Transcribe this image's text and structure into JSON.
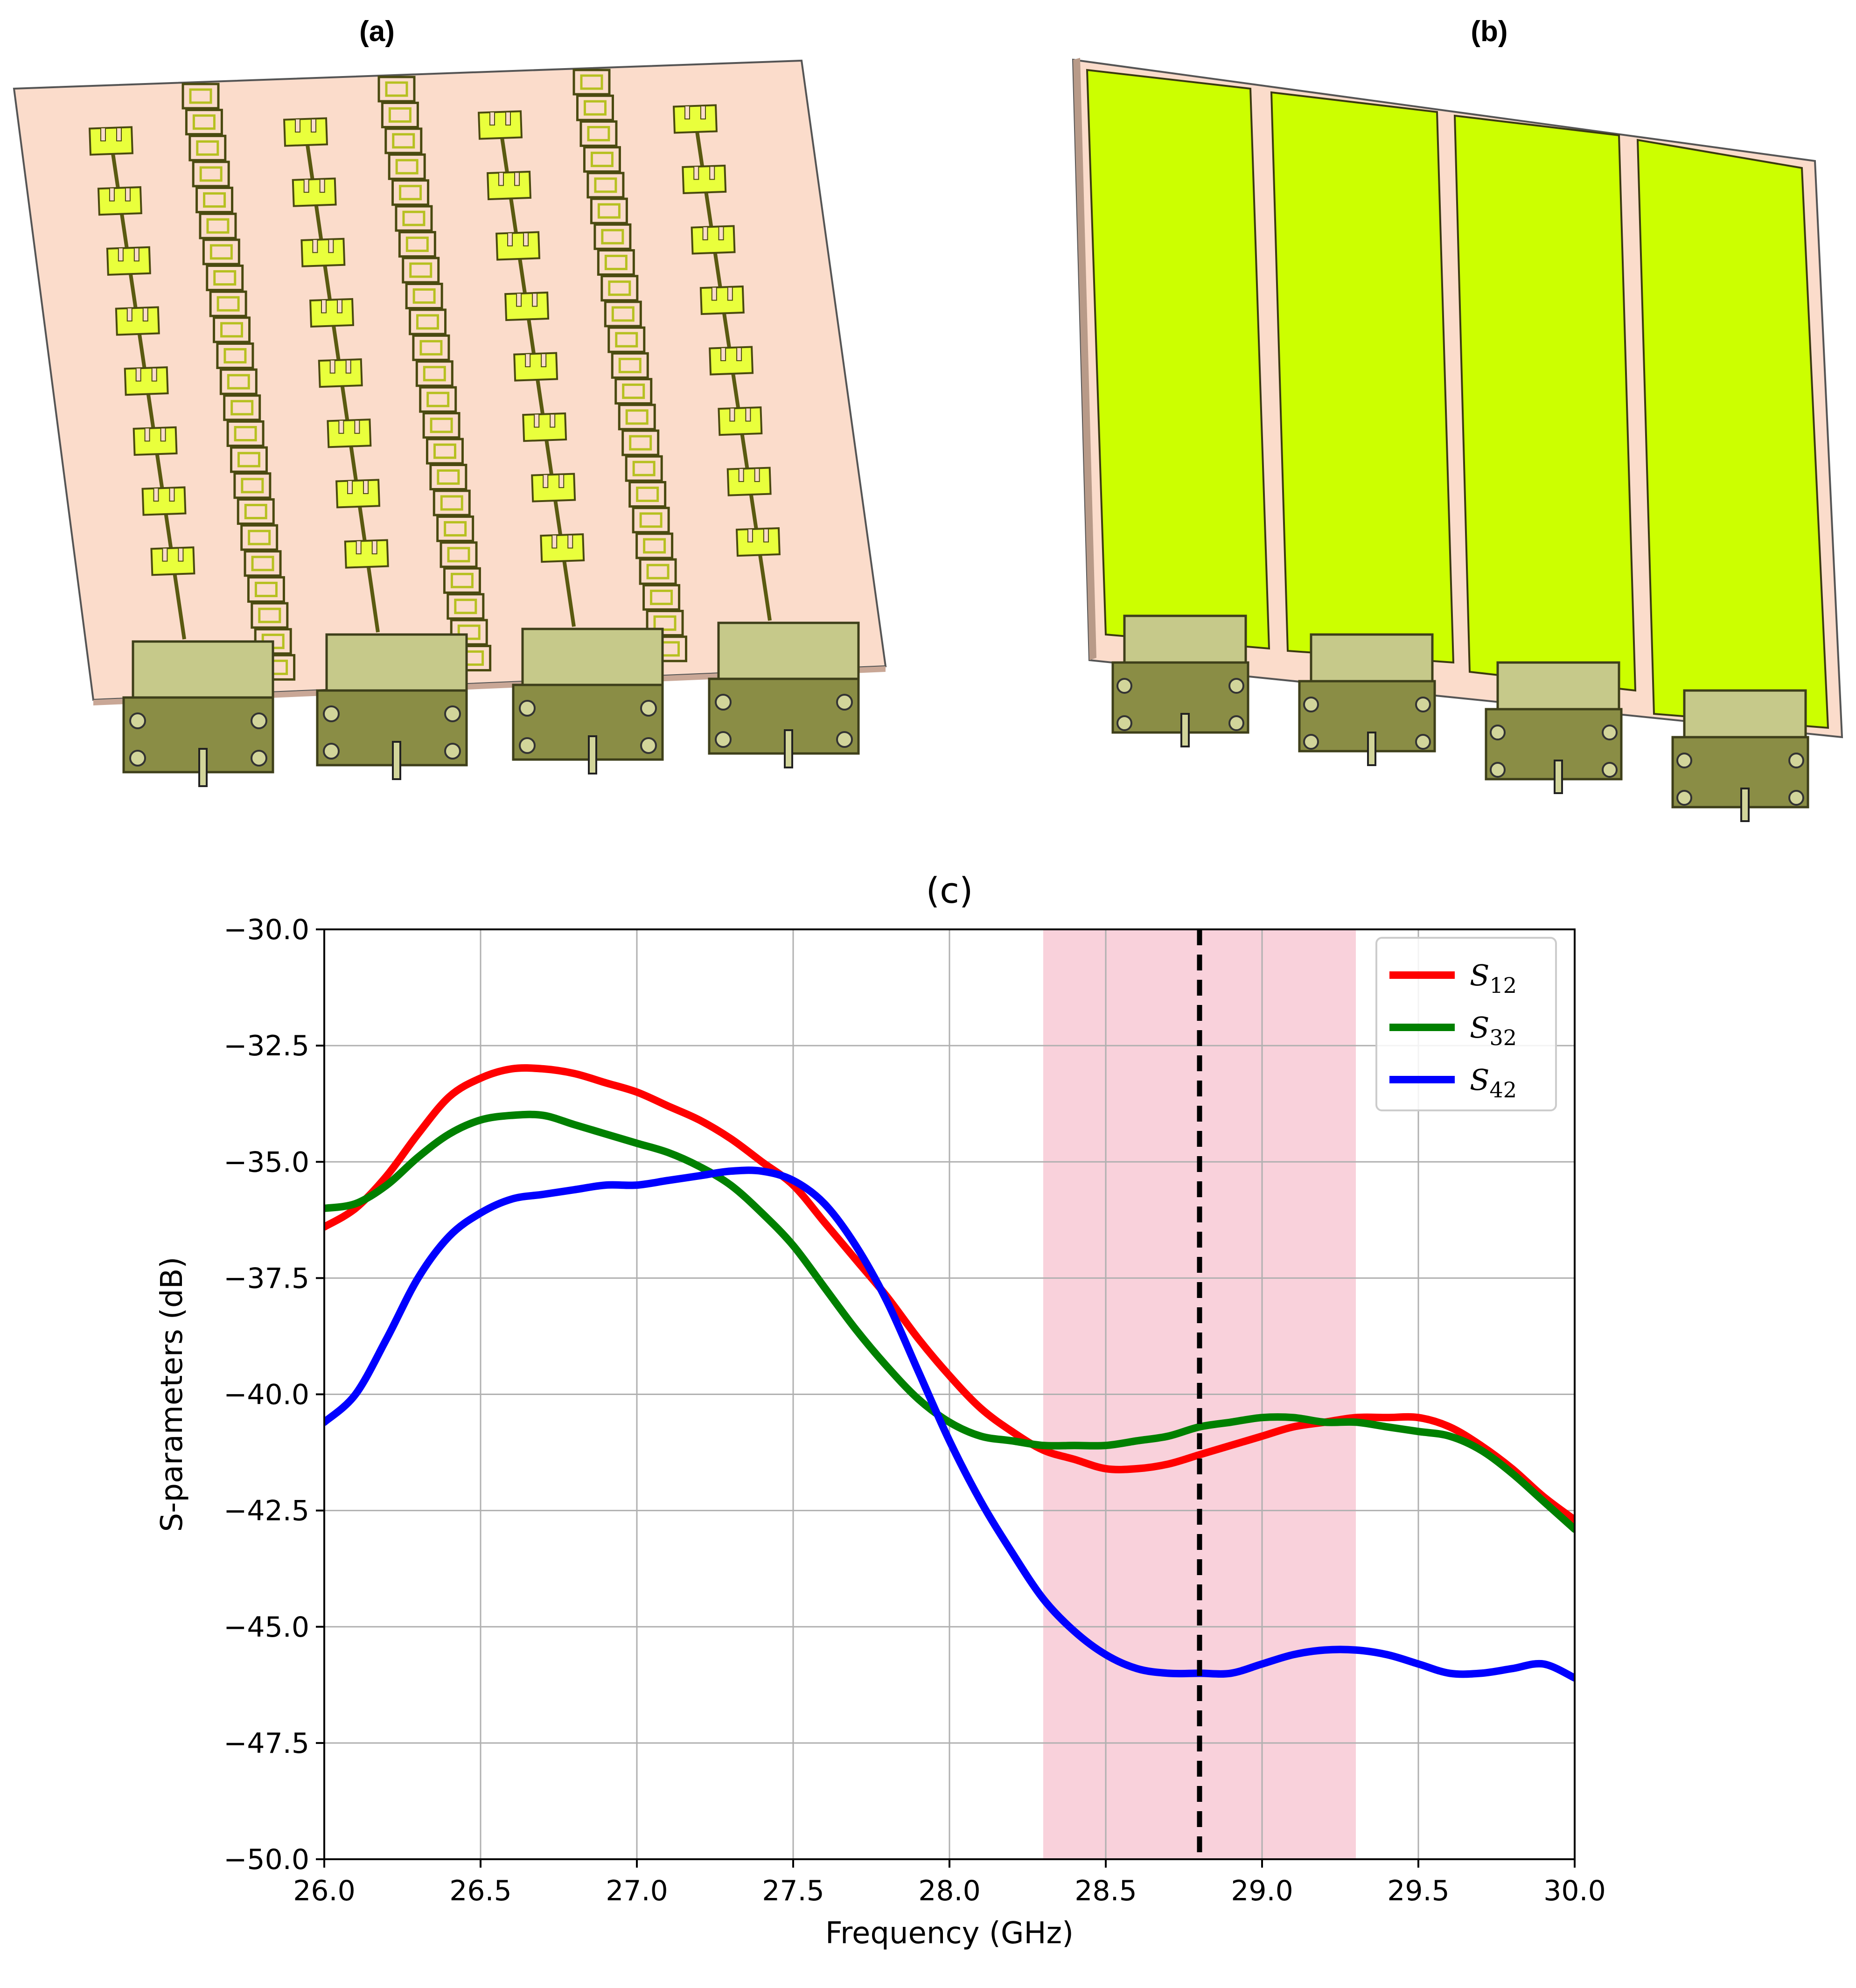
{
  "panels": {
    "a_label": "(a)",
    "b_label": "(b)",
    "c_label": "(c)"
  },
  "colors": {
    "substrate": "#fbdccb",
    "patch": "#e9ff3c",
    "ground": "#ccff00",
    "connector": "#8a8d45",
    "band": "#f9d1db"
  },
  "chart_data": {
    "type": "line",
    "title": "(c)",
    "xlabel": "Frequency (GHz)",
    "ylabel": "S-parameters (dB)",
    "xlim": [
      26.0,
      30.0
    ],
    "ylim": [
      -50.0,
      -30.0
    ],
    "x_ticks": [
      "26.0",
      "26.5",
      "27.0",
      "27.5",
      "28.0",
      "28.5",
      "29.0",
      "29.5",
      "30.0"
    ],
    "y_ticks": [
      "−30.0",
      "−32.5",
      "−35.0",
      "−37.5",
      "−40.0",
      "−42.5",
      "−45.0",
      "−47.5",
      "−50.0"
    ],
    "grid": true,
    "legend_position": "top-right",
    "shaded_band": {
      "x_start": 28.3,
      "x_end": 29.3,
      "color": "#f9d1db"
    },
    "vline": {
      "x": 28.8,
      "style": "dashed",
      "color": "#000000"
    },
    "series": [
      {
        "name": "S12",
        "base": "S",
        "sub": "12",
        "color": "#ff0000",
        "x": [
          26.0,
          26.1,
          26.2,
          26.3,
          26.4,
          26.5,
          26.6,
          26.7,
          26.8,
          26.9,
          27.0,
          27.1,
          27.2,
          27.3,
          27.4,
          27.5,
          27.6,
          27.7,
          27.8,
          27.9,
          28.0,
          28.1,
          28.2,
          28.3,
          28.4,
          28.5,
          28.6,
          28.7,
          28.8,
          28.9,
          29.0,
          29.1,
          29.2,
          29.3,
          29.4,
          29.5,
          29.6,
          29.7,
          29.8,
          29.9,
          30.0
        ],
        "y": [
          -36.4,
          -36.0,
          -35.3,
          -34.4,
          -33.6,
          -33.2,
          -33.0,
          -33.0,
          -33.1,
          -33.3,
          -33.5,
          -33.8,
          -34.1,
          -34.5,
          -35.0,
          -35.5,
          -36.3,
          -37.1,
          -37.9,
          -38.8,
          -39.6,
          -40.3,
          -40.8,
          -41.2,
          -41.4,
          -41.6,
          -41.6,
          -41.5,
          -41.3,
          -41.1,
          -40.9,
          -40.7,
          -40.6,
          -40.5,
          -40.5,
          -40.5,
          -40.7,
          -41.1,
          -41.6,
          -42.2,
          -42.7
        ]
      },
      {
        "name": "S32",
        "base": "S",
        "sub": "32",
        "color": "#008000",
        "x": [
          26.0,
          26.1,
          26.2,
          26.3,
          26.4,
          26.5,
          26.6,
          26.7,
          26.8,
          26.9,
          27.0,
          27.1,
          27.2,
          27.3,
          27.4,
          27.5,
          27.6,
          27.7,
          27.8,
          27.9,
          28.0,
          28.1,
          28.2,
          28.3,
          28.4,
          28.5,
          28.6,
          28.7,
          28.8,
          28.9,
          29.0,
          29.1,
          29.2,
          29.3,
          29.4,
          29.5,
          29.6,
          29.7,
          29.8,
          29.9,
          30.0
        ],
        "y": [
          -36.0,
          -35.9,
          -35.5,
          -34.9,
          -34.4,
          -34.1,
          -34.0,
          -34.0,
          -34.2,
          -34.4,
          -34.6,
          -34.8,
          -35.1,
          -35.5,
          -36.1,
          -36.8,
          -37.7,
          -38.6,
          -39.4,
          -40.1,
          -40.6,
          -40.9,
          -41.0,
          -41.1,
          -41.1,
          -41.1,
          -41.0,
          -40.9,
          -40.7,
          -40.6,
          -40.5,
          -40.5,
          -40.6,
          -40.6,
          -40.7,
          -40.8,
          -40.9,
          -41.2,
          -41.7,
          -42.3,
          -42.9
        ]
      },
      {
        "name": "S42",
        "base": "S",
        "sub": "42",
        "color": "#0000ff",
        "x": [
          26.0,
          26.1,
          26.2,
          26.3,
          26.4,
          26.5,
          26.6,
          26.7,
          26.8,
          26.9,
          27.0,
          27.1,
          27.2,
          27.3,
          27.4,
          27.5,
          27.6,
          27.7,
          27.8,
          27.9,
          28.0,
          28.1,
          28.2,
          28.3,
          28.4,
          28.5,
          28.6,
          28.7,
          28.8,
          28.9,
          29.0,
          29.1,
          29.2,
          29.3,
          29.4,
          29.5,
          29.6,
          29.7,
          29.8,
          29.9,
          30.0
        ],
        "y": [
          -40.6,
          -40.0,
          -38.8,
          -37.5,
          -36.6,
          -36.1,
          -35.8,
          -35.7,
          -35.6,
          -35.5,
          -35.5,
          -35.4,
          -35.3,
          -35.2,
          -35.2,
          -35.4,
          -35.9,
          -36.8,
          -38.0,
          -39.5,
          -41.0,
          -42.3,
          -43.4,
          -44.4,
          -45.1,
          -45.6,
          -45.9,
          -46.0,
          -46.0,
          -46.0,
          -45.8,
          -45.6,
          -45.5,
          -45.5,
          -45.6,
          -45.8,
          -46.0,
          -46.0,
          -45.9,
          -45.8,
          -46.1
        ]
      }
    ]
  }
}
